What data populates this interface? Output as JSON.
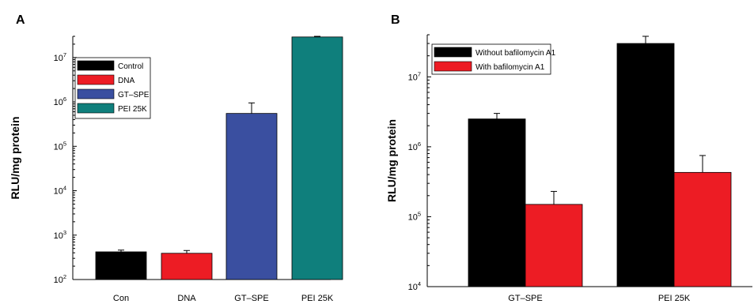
{
  "chart_data": [
    {
      "panel": "A",
      "type": "bar",
      "ylabel": "RLU/mg protein",
      "yscale": "log",
      "ylim": [
        100,
        30000000
      ],
      "yticks": [
        {
          "value": 100,
          "base": "10",
          "exp": "2"
        },
        {
          "value": 1000,
          "base": "10",
          "exp": "3"
        },
        {
          "value": 10000,
          "base": "10",
          "exp": "4"
        },
        {
          "value": 100000,
          "base": "10",
          "exp": "5"
        },
        {
          "value": 1000000,
          "base": "10",
          "exp": "6"
        },
        {
          "value": 10000000,
          "base": "10",
          "exp": "7"
        }
      ],
      "categories": [
        "Con",
        "DNA",
        "GT–SPE",
        "PEI 25K"
      ],
      "values": [
        420,
        390,
        550000,
        29000000
      ],
      "errors_upper": [
        460,
        450,
        950000,
        30000000
      ],
      "colors": [
        "#000000",
        "#ed1c24",
        "#3a4fa0",
        "#0f7f7c"
      ],
      "legend": {
        "position": "top-left",
        "entries": [
          {
            "label": "Control",
            "color": "#000000"
          },
          {
            "label": "DNA",
            "color": "#ed1c24"
          },
          {
            "label": "GT–SPE",
            "color": "#3a4fa0"
          },
          {
            "label": "PEI 25K",
            "color": "#0f7f7c"
          }
        ]
      }
    },
    {
      "panel": "B",
      "type": "bar",
      "ylabel": "RLU/mg protein",
      "yscale": "log",
      "ylim": [
        10000,
        40000000
      ],
      "yticks": [
        {
          "value": 10000,
          "base": "10",
          "exp": "4"
        },
        {
          "value": 100000,
          "base": "10",
          "exp": "5"
        },
        {
          "value": 1000000,
          "base": "10",
          "exp": "6"
        },
        {
          "value": 10000000,
          "base": "10",
          "exp": "7"
        }
      ],
      "categories": [
        "GT–SPE",
        "PEI 25K"
      ],
      "series": [
        {
          "name": "Without bafilomycin A1",
          "color": "#000000",
          "values": [
            2500000,
            30000000
          ],
          "errors_upper": [
            3000000,
            38000000
          ]
        },
        {
          "name": "With bafilomycin A1",
          "color": "#ed1c24",
          "values": [
            150000,
            430000
          ],
          "errors_upper": [
            230000,
            750000
          ]
        }
      ],
      "legend": {
        "position": "top-left"
      }
    }
  ]
}
